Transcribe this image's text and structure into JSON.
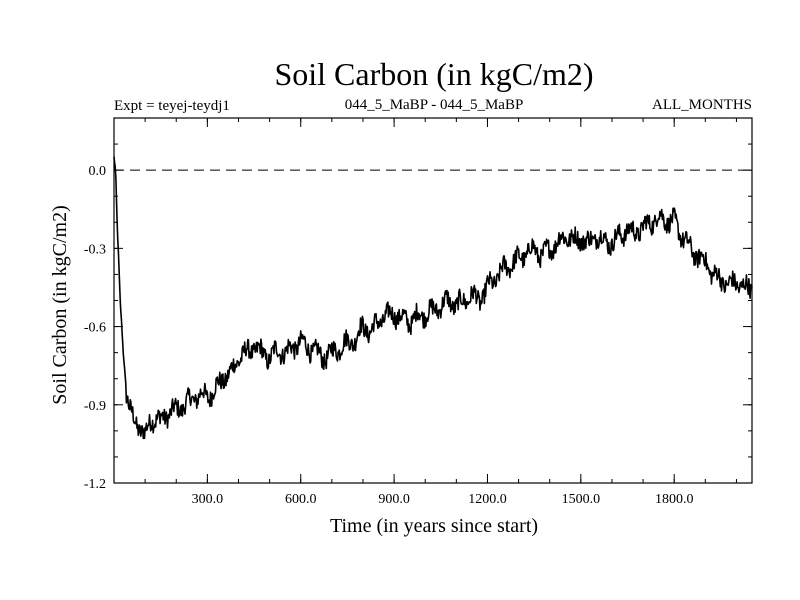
{
  "chart_data": {
    "type": "line",
    "title": "Soil Carbon (in kgC/m2)",
    "subtitle_left": "Expt = teyej-teydj1",
    "subtitle_center": "044_5_MaBP - 044_5_MaBP",
    "subtitle_right": "ALL_MONTHS",
    "xlabel": "Time (in years since start)",
    "ylabel": "Soil Carbon (in kgC/m2)",
    "xlim": [
      0,
      2050
    ],
    "ylim": [
      -1.2,
      0.2
    ],
    "x_ticks": [
      {
        "value": 300,
        "label": "300.0"
      },
      {
        "value": 600,
        "label": "600.0"
      },
      {
        "value": 900,
        "label": "900.0"
      },
      {
        "value": 1200,
        "label": "1200.0"
      },
      {
        "value": 1500,
        "label": "1500.0"
      },
      {
        "value": 1800,
        "label": "1800.0"
      }
    ],
    "y_ticks": [
      {
        "value": 0.0,
        "label": "0.0"
      },
      {
        "value": -0.3,
        "label": "-0.3"
      },
      {
        "value": -0.6,
        "label": "-0.6"
      },
      {
        "value": -0.9,
        "label": "-0.9"
      },
      {
        "value": -1.2,
        "label": "-1.2"
      }
    ],
    "reference_line": {
      "y": 0.0,
      "style": "dashed"
    },
    "series": [
      {
        "name": "Soil Carbon",
        "x": [
          0,
          5,
          10,
          20,
          30,
          40,
          50,
          60,
          70,
          80,
          90,
          100,
          120,
          150,
          175,
          200,
          225,
          250,
          275,
          300,
          325,
          350,
          375,
          400,
          425,
          450,
          475,
          500,
          525,
          550,
          575,
          600,
          625,
          650,
          675,
          700,
          725,
          750,
          775,
          800,
          825,
          850,
          875,
          900,
          925,
          950,
          975,
          1000,
          1025,
          1050,
          1075,
          1100,
          1125,
          1150,
          1175,
          1200,
          1225,
          1250,
          1275,
          1300,
          1325,
          1350,
          1375,
          1400,
          1425,
          1450,
          1475,
          1500,
          1525,
          1550,
          1575,
          1600,
          1625,
          1650,
          1675,
          1700,
          1725,
          1750,
          1775,
          1800,
          1825,
          1850,
          1875,
          1900,
          1925,
          1950,
          1975,
          2000,
          2025,
          2050
        ],
        "y": [
          0.05,
          0.0,
          -0.2,
          -0.5,
          -0.7,
          -0.85,
          -0.92,
          -0.95,
          -0.97,
          -0.98,
          -1.0,
          -1.02,
          -0.95,
          -0.96,
          -0.93,
          -0.92,
          -0.9,
          -0.88,
          -0.86,
          -0.87,
          -0.84,
          -0.8,
          -0.78,
          -0.72,
          -0.7,
          -0.68,
          -0.7,
          -0.72,
          -0.69,
          -0.7,
          -0.68,
          -0.66,
          -0.68,
          -0.7,
          -0.72,
          -0.7,
          -0.68,
          -0.66,
          -0.65,
          -0.6,
          -0.62,
          -0.58,
          -0.56,
          -0.55,
          -0.57,
          -0.58,
          -0.56,
          -0.55,
          -0.54,
          -0.52,
          -0.5,
          -0.52,
          -0.5,
          -0.48,
          -0.5,
          -0.45,
          -0.42,
          -0.38,
          -0.36,
          -0.34,
          -0.32,
          -0.3,
          -0.33,
          -0.3,
          -0.28,
          -0.25,
          -0.27,
          -0.26,
          -0.28,
          -0.25,
          -0.27,
          -0.28,
          -0.25,
          -0.23,
          -0.24,
          -0.22,
          -0.2,
          -0.18,
          -0.19,
          -0.2,
          -0.25,
          -0.3,
          -0.33,
          -0.35,
          -0.4,
          -0.42,
          -0.44,
          -0.43,
          -0.45,
          -0.45
        ]
      }
    ]
  }
}
